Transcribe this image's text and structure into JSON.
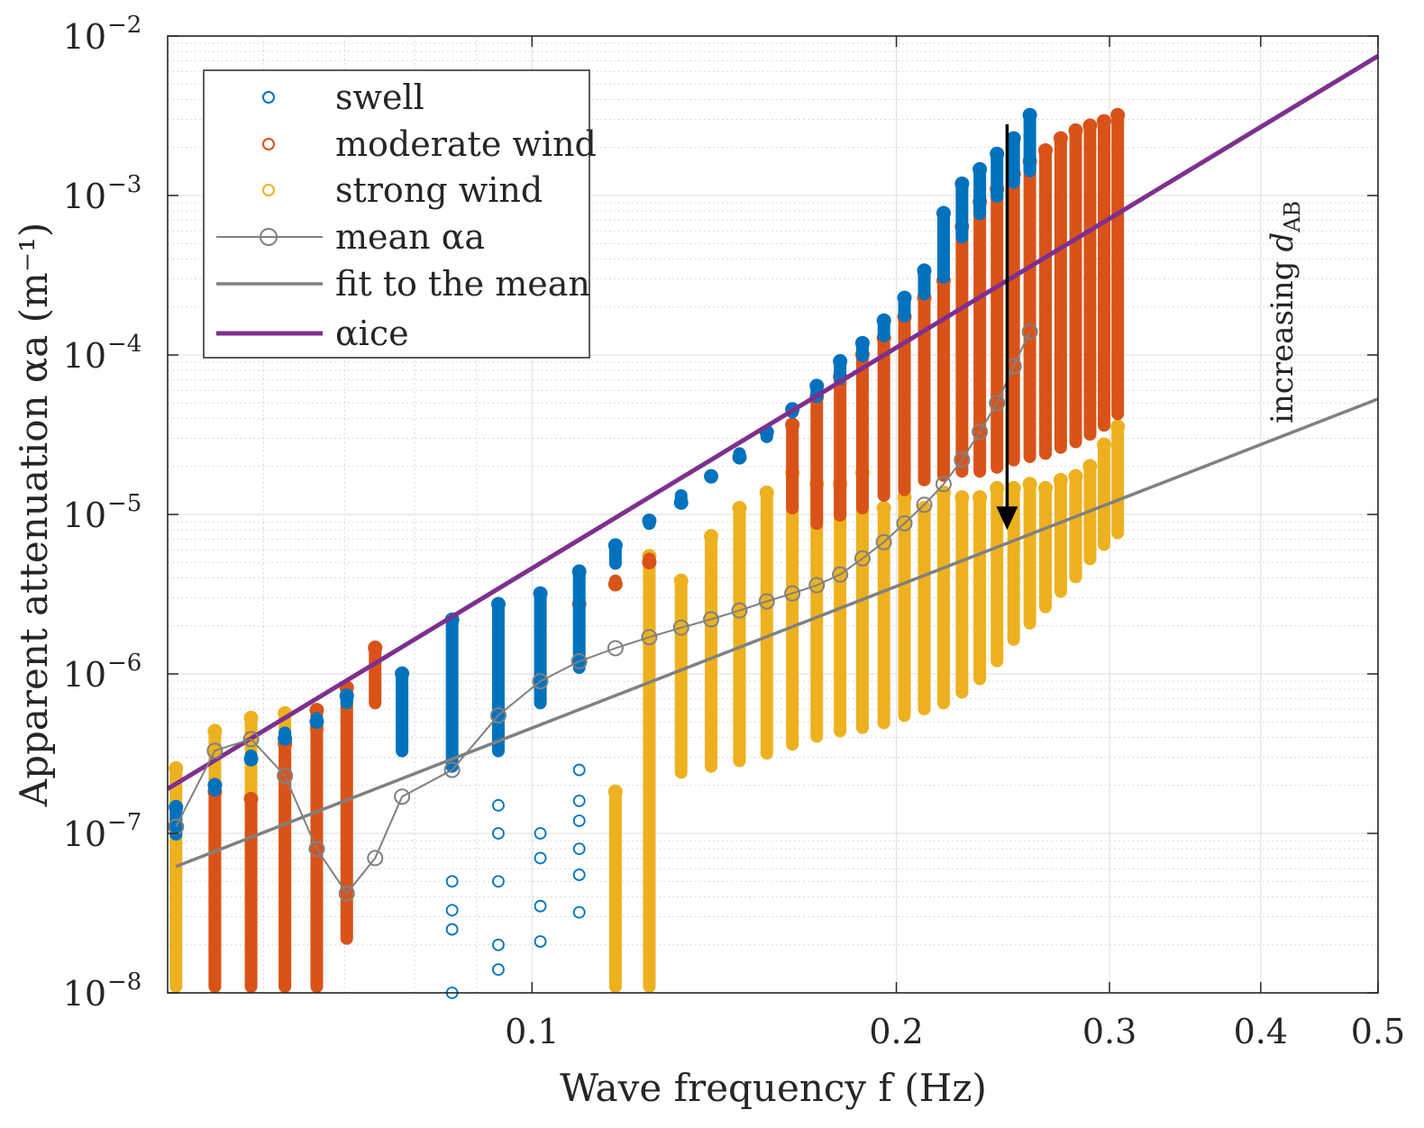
{
  "chart_data": {
    "type": "scatter",
    "x_scale": "log",
    "y_scale": "log",
    "xlim": [
      0.05,
      0.5
    ],
    "ylim": [
      1e-08,
      0.01
    ],
    "xlabel": "Wave frequency f (Hz)",
    "ylabel": "Apparent attenuation αa (m⁻¹)",
    "x_ticks": [
      {
        "value": 0.1,
        "label": "0.1"
      },
      {
        "value": 0.2,
        "label": "0.2"
      },
      {
        "value": 0.3,
        "label": "0.3"
      },
      {
        "value": 0.4,
        "label": "0.4"
      },
      {
        "value": 0.5,
        "label": "0.5"
      }
    ],
    "y_ticks": [
      {
        "value": 1e-08,
        "base": "10",
        "exp": "−8"
      },
      {
        "value": 1e-07,
        "base": "10",
        "exp": "−7"
      },
      {
        "value": 1e-06,
        "base": "10",
        "exp": "−6"
      },
      {
        "value": 1e-05,
        "base": "10",
        "exp": "−5"
      },
      {
        "value": 0.0001,
        "base": "10",
        "exp": "−4"
      },
      {
        "value": 0.001,
        "base": "10",
        "exp": "−3"
      },
      {
        "value": 0.01,
        "base": "10",
        "exp": "−2"
      }
    ],
    "grid": true,
    "legend": {
      "placement": "top-left",
      "entries": [
        {
          "key": "swell",
          "label": "swell",
          "marker": "circle",
          "color": "#0072BD"
        },
        {
          "key": "moderate",
          "label": "moderate wind",
          "marker": "circle",
          "color": "#D95319"
        },
        {
          "key": "strong",
          "label": "strong wind",
          "marker": "circle",
          "color": "#EDB120"
        },
        {
          "key": "mean",
          "label": "mean αa",
          "marker": "circle-line",
          "color": "#808080"
        },
        {
          "key": "fit",
          "label": "fit to the mean",
          "marker": "line",
          "color": "#808080"
        },
        {
          "key": "ice",
          "label": "αice",
          "marker": "line",
          "color": "#7E2F8E"
        }
      ]
    },
    "series": [
      {
        "name": "strong wind",
        "color": "#EDB120",
        "bands": [
          {
            "f": 0.0508,
            "lo": 1e-08,
            "hi": 2.8e-07
          },
          {
            "f": 0.0547,
            "lo": 1e-08,
            "hi": 4.8e-07
          },
          {
            "f": 0.0586,
            "lo": 1e-08,
            "hi": 5.8e-07
          },
          {
            "f": 0.0625,
            "lo": 1e-08,
            "hi": 6.2e-07
          },
          {
            "f": 0.0664,
            "lo": 1e-08,
            "hi": 5e-07
          },
          {
            "f": 0.1172,
            "lo": 1e-08,
            "hi": 2e-07
          },
          {
            "f": 0.125,
            "lo": 1e-08,
            "hi": 6e-06
          },
          {
            "f": 0.1328,
            "lo": 2.2e-07,
            "hi": 4.2e-06
          },
          {
            "f": 0.1406,
            "lo": 2.4e-07,
            "hi": 8e-06
          },
          {
            "f": 0.1484,
            "lo": 2.6e-07,
            "hi": 1.2e-05
          },
          {
            "f": 0.1563,
            "lo": 2.9e-07,
            "hi": 1.5e-05
          },
          {
            "f": 0.1641,
            "lo": 3.3e-07,
            "hi": 2e-05
          },
          {
            "f": 0.1719,
            "lo": 3.7e-07,
            "hi": 1.7e-05
          },
          {
            "f": 0.1797,
            "lo": 4e-07,
            "hi": 1.7e-05
          },
          {
            "f": 0.1875,
            "lo": 4.2e-07,
            "hi": 2e-05
          },
          {
            "f": 0.1953,
            "lo": 4.5e-07,
            "hi": 1.2e-05
          },
          {
            "f": 0.2031,
            "lo": 5e-07,
            "hi": 1.4e-05
          },
          {
            "f": 0.2109,
            "lo": 5.5e-07,
            "hi": 1.2e-05
          },
          {
            "f": 0.2188,
            "lo": 6e-07,
            "hi": 1.5e-05
          },
          {
            "f": 0.2266,
            "lo": 7e-07,
            "hi": 1.4e-05
          },
          {
            "f": 0.2344,
            "lo": 8.5e-07,
            "hi": 1.4e-05
          },
          {
            "f": 0.2422,
            "lo": 1.1e-06,
            "hi": 1.6e-05
          },
          {
            "f": 0.25,
            "lo": 1.5e-06,
            "hi": 1.6e-05
          },
          {
            "f": 0.2578,
            "lo": 1.9e-06,
            "hi": 1.7e-05
          },
          {
            "f": 0.2656,
            "lo": 2.4e-06,
            "hi": 1.6e-05
          },
          {
            "f": 0.2734,
            "lo": 3e-06,
            "hi": 1.8e-05
          },
          {
            "f": 0.2813,
            "lo": 3.7e-06,
            "hi": 1.9e-05
          },
          {
            "f": 0.2891,
            "lo": 4.8e-06,
            "hi": 2.2e-05
          },
          {
            "f": 0.2969,
            "lo": 5.9e-06,
            "hi": 3e-05
          },
          {
            "f": 0.3047,
            "lo": 7e-06,
            "hi": 3.9e-05
          }
        ]
      },
      {
        "name": "moderate wind",
        "color": "#D95319",
        "bands": [
          {
            "f": 0.0547,
            "lo": 1e-08,
            "hi": 2e-07
          },
          {
            "f": 0.0586,
            "lo": 1e-08,
            "hi": 1.8e-07
          },
          {
            "f": 0.0625,
            "lo": 1e-08,
            "hi": 4e-07
          },
          {
            "f": 0.0664,
            "lo": 1e-08,
            "hi": 6.5e-07
          },
          {
            "f": 0.0703,
            "lo": 2e-08,
            "hi": 9e-07
          },
          {
            "f": 0.0742,
            "lo": 6e-07,
            "hi": 1.6e-06
          },
          {
            "f": 0.1094,
            "lo": 2.5e-06,
            "hi": 3e-06
          },
          {
            "f": 0.1172,
            "lo": 3.5e-06,
            "hi": 4e-06
          },
          {
            "f": 0.125,
            "lo": 4.8e-06,
            "hi": 5.5e-06
          },
          {
            "f": 0.1641,
            "lo": 1e-05,
            "hi": 4e-05
          },
          {
            "f": 0.1719,
            "lo": 8e-06,
            "hi": 6e-05
          },
          {
            "f": 0.1797,
            "lo": 9e-06,
            "hi": 8e-05
          },
          {
            "f": 0.1875,
            "lo": 1e-05,
            "hi": 0.00011
          },
          {
            "f": 0.1953,
            "lo": 1.2e-05,
            "hi": 0.00014
          },
          {
            "f": 0.2031,
            "lo": 1.3e-05,
            "hi": 0.00019
          },
          {
            "f": 0.2109,
            "lo": 1.5e-05,
            "hi": 0.00025
          },
          {
            "f": 0.2188,
            "lo": 1.6e-05,
            "hi": 0.00032
          },
          {
            "f": 0.2266,
            "lo": 1.7e-05,
            "hi": 0.0007
          },
          {
            "f": 0.2344,
            "lo": 1.7e-05,
            "hi": 0.001
          },
          {
            "f": 0.2422,
            "lo": 1.8e-05,
            "hi": 0.0012
          },
          {
            "f": 0.25,
            "lo": 2e-05,
            "hi": 0.0015
          },
          {
            "f": 0.2578,
            "lo": 2.1e-05,
            "hi": 0.0018
          },
          {
            "f": 0.2656,
            "lo": 2.2e-05,
            "hi": 0.0021
          },
          {
            "f": 0.2734,
            "lo": 2.4e-05,
            "hi": 0.0025
          },
          {
            "f": 0.2813,
            "lo": 2.6e-05,
            "hi": 0.0028
          },
          {
            "f": 0.2891,
            "lo": 2.9e-05,
            "hi": 0.003
          },
          {
            "f": 0.2969,
            "lo": 3.3e-05,
            "hi": 0.0032
          },
          {
            "f": 0.3047,
            "lo": 3.9e-05,
            "hi": 0.0035
          }
        ]
      },
      {
        "name": "swell",
        "color": "#0072BD",
        "bands": [
          {
            "f": 0.0508,
            "lo": 9e-08,
            "hi": 1.6e-07
          },
          {
            "f": 0.0547,
            "lo": 1.7e-07,
            "hi": 2.2e-07
          },
          {
            "f": 0.0586,
            "lo": 2.8e-07,
            "hi": 3.2e-07
          },
          {
            "f": 0.0625,
            "lo": 3.9e-07,
            "hi": 4.3e-07
          },
          {
            "f": 0.0664,
            "lo": 4.8e-07,
            "hi": 5.5e-07
          },
          {
            "f": 0.0703,
            "lo": 6e-07,
            "hi": 8e-07
          },
          {
            "f": 0.0781,
            "lo": 3e-07,
            "hi": 1.1e-06
          },
          {
            "f": 0.0859,
            "lo": 2.4e-07,
            "hi": 2.4e-06
          },
          {
            "f": 0.0938,
            "lo": 3e-07,
            "hi": 3e-06
          },
          {
            "f": 0.1016,
            "lo": 6e-07,
            "hi": 3.5e-06
          },
          {
            "f": 0.1094,
            "lo": 1e-06,
            "hi": 4.8e-06
          },
          {
            "f": 0.1172,
            "lo": 4.5e-06,
            "hi": 7e-06
          },
          {
            "f": 0.125,
            "lo": 8e-06,
            "hi": 1e-05
          },
          {
            "f": 0.1328,
            "lo": 1.2e-05,
            "hi": 1.3e-05
          },
          {
            "f": 0.1406,
            "lo": 1.6e-05,
            "hi": 1.9e-05
          },
          {
            "f": 0.1484,
            "lo": 2.2e-05,
            "hi": 2.5e-05
          },
          {
            "f": 0.1563,
            "lo": 2.8e-05,
            "hi": 3.6e-05
          },
          {
            "f": 0.1641,
            "lo": 4e-05,
            "hi": 5e-05
          },
          {
            "f": 0.1719,
            "lo": 5e-05,
            "hi": 7e-05
          },
          {
            "f": 0.1797,
            "lo": 6.5e-05,
            "hi": 0.0001
          },
          {
            "f": 0.1875,
            "lo": 9e-05,
            "hi": 0.00013
          },
          {
            "f": 0.1953,
            "lo": 0.00012,
            "hi": 0.00018
          },
          {
            "f": 0.2031,
            "lo": 0.00016,
            "hi": 0.00025
          },
          {
            "f": 0.2109,
            "lo": 0.00022,
            "hi": 0.00037
          },
          {
            "f": 0.2188,
            "lo": 0.00028,
            "hi": 0.00085
          },
          {
            "f": 0.2266,
            "lo": 0.0005,
            "hi": 0.0013
          },
          {
            "f": 0.2344,
            "lo": 0.0007,
            "hi": 0.0016
          },
          {
            "f": 0.2422,
            "lo": 0.0009,
            "hi": 0.002
          },
          {
            "f": 0.25,
            "lo": 0.0011,
            "hi": 0.0025
          },
          {
            "f": 0.2578,
            "lo": 0.0013,
            "hi": 0.0035
          }
        ]
      }
    ],
    "swell_scatter": [
      {
        "f": 0.0859,
        "values": [
          5e-08,
          3.3e-08,
          2.5e-08,
          1e-08
        ]
      },
      {
        "f": 0.0938,
        "values": [
          1.5e-07,
          1e-07,
          5e-08,
          2e-08,
          1.4e-08
        ]
      },
      {
        "f": 0.1016,
        "values": [
          1e-07,
          7e-08,
          3.5e-08,
          2.1e-08
        ]
      },
      {
        "f": 0.1094,
        "values": [
          2.5e-07,
          1.6e-07,
          1.2e-07,
          8e-08,
          5.5e-08,
          3.2e-08
        ]
      }
    ],
    "mean_alpha": {
      "name": "mean αa",
      "color": "#808080",
      "points": [
        [
          0.0508,
          1.1e-07
        ],
        [
          0.0547,
          3.3e-07
        ],
        [
          0.0586,
          3.9e-07
        ],
        [
          0.0625,
          2.3e-07
        ],
        [
          0.0664,
          8e-08
        ],
        [
          0.0703,
          4.2e-08
        ],
        [
          0.0742,
          7e-08
        ],
        [
          0.0781,
          1.7e-07
        ],
        [
          0.0859,
          2.5e-07
        ],
        [
          0.0938,
          5.5e-07
        ],
        [
          0.1016,
          9e-07
        ],
        [
          0.1094,
          1.2e-06
        ],
        [
          0.1172,
          1.45e-06
        ],
        [
          0.125,
          1.7e-06
        ],
        [
          0.1328,
          1.95e-06
        ],
        [
          0.1406,
          2.2e-06
        ],
        [
          0.1484,
          2.5e-06
        ],
        [
          0.1563,
          2.85e-06
        ],
        [
          0.1641,
          3.2e-06
        ],
        [
          0.1719,
          3.6e-06
        ],
        [
          0.1797,
          4.2e-06
        ],
        [
          0.1875,
          5.3e-06
        ],
        [
          0.1953,
          6.7e-06
        ],
        [
          0.2031,
          8.8e-06
        ],
        [
          0.2109,
          1.15e-05
        ],
        [
          0.2188,
          1.55e-05
        ],
        [
          0.2266,
          2.2e-05
        ],
        [
          0.2344,
          3.3e-05
        ],
        [
          0.2422,
          5e-05
        ],
        [
          0.25,
          8.5e-05
        ],
        [
          0.2578,
          0.00014
        ]
      ]
    },
    "fit": {
      "name": "fit to the mean",
      "color": "#808080",
      "points": [
        [
          0.0508,
          6.2e-08
        ],
        [
          0.5,
          5.3e-05
        ]
      ]
    },
    "ice": {
      "name": "αice",
      "color": "#7E2F8E",
      "points": [
        [
          0.05,
          1.9e-07
        ],
        [
          0.5,
          0.0075
        ]
      ]
    },
    "annotations": [
      {
        "text": "increasing",
        "sub_text": "AB",
        "var_text": "d",
        "arrow": "down",
        "f_arrow": 0.2469,
        "arrow_from": 0.0028,
        "arrow_to": 8e-06
      }
    ]
  }
}
